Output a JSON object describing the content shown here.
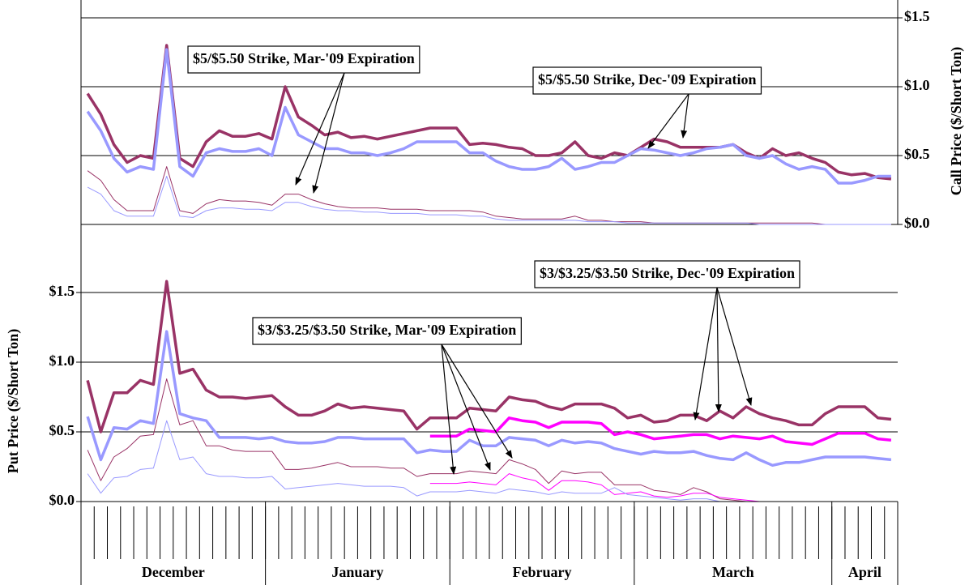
{
  "chart_data": [
    {
      "type": "line",
      "ylabel": "Call Price ($/Short Ton)",
      "ylim": [
        0,
        1.5
      ],
      "grid": true,
      "yticks": [
        {
          "value": 0,
          "label": "$0.0"
        },
        {
          "value": 0.5,
          "label": "$0.5"
        },
        {
          "value": 1,
          "label": "$1.0"
        },
        {
          "value": 1.5,
          "label": "$1.5"
        }
      ],
      "annotations": [
        {
          "text": "$5/$5.50 Strike, Mar-'09 Expiration"
        },
        {
          "text": "$5/$5.50 Strike, Dec-'09 Expiration"
        }
      ],
      "series": [
        {
          "color": "#993366",
          "width": 3.5,
          "values": [
            0.95,
            0.8,
            0.58,
            0.45,
            0.5,
            0.48,
            1.3,
            0.48,
            0.42,
            0.6,
            0.68,
            0.64,
            0.64,
            0.66,
            0.62,
            1.0,
            0.78,
            0.72,
            0.65,
            0.67,
            0.63,
            0.64,
            0.62,
            0.64,
            0.66,
            0.68,
            0.7,
            0.7,
            0.7,
            0.58,
            0.59,
            0.58,
            0.56,
            0.55,
            0.5,
            0.5,
            0.52,
            0.6,
            0.5,
            0.48,
            0.52,
            0.5,
            0.56,
            0.62,
            0.6,
            0.56,
            0.56,
            0.56,
            0.56,
            0.58,
            0.52,
            0.48,
            0.55,
            0.5,
            0.52,
            0.48,
            0.45,
            0.38,
            0.36,
            0.37,
            0.34,
            0.33
          ]
        },
        {
          "color": "#9999ff",
          "width": 3.5,
          "values": [
            0.82,
            0.68,
            0.48,
            0.38,
            0.42,
            0.4,
            1.27,
            0.42,
            0.35,
            0.52,
            0.55,
            0.53,
            0.53,
            0.55,
            0.5,
            0.85,
            0.65,
            0.6,
            0.55,
            0.55,
            0.52,
            0.52,
            0.5,
            0.52,
            0.55,
            0.6,
            0.6,
            0.6,
            0.6,
            0.52,
            0.52,
            0.46,
            0.42,
            0.4,
            0.4,
            0.42,
            0.48,
            0.4,
            0.42,
            0.45,
            0.45,
            0.5,
            0.55,
            0.54,
            0.52,
            0.5,
            0.52,
            0.55,
            0.56,
            0.58,
            0.5,
            0.48,
            0.5,
            0.44,
            0.4,
            0.42,
            0.4,
            0.3,
            0.3,
            0.32,
            0.35,
            0.35
          ]
        },
        {
          "color": "#993366",
          "width": 1,
          "values": [
            0.39,
            0.32,
            0.18,
            0.1,
            0.1,
            0.1,
            0.42,
            0.1,
            0.08,
            0.15,
            0.18,
            0.17,
            0.17,
            0.16,
            0.14,
            0.22,
            0.22,
            0.18,
            0.15,
            0.13,
            0.12,
            0.12,
            0.12,
            0.11,
            0.11,
            0.11,
            0.1,
            0.1,
            0.1,
            0.1,
            0.09,
            0.06,
            0.05,
            0.04,
            0.04,
            0.04,
            0.04,
            0.06,
            0.03,
            0.03,
            0.02,
            0.02,
            0.02,
            0.01,
            0.01,
            0.01,
            0.01,
            0.01,
            0.01,
            0.01,
            0.01,
            0.01,
            0.01,
            0.01,
            0.01,
            0.01,
            0.0,
            0.0,
            0.0,
            0.0,
            0.0,
            0.0
          ]
        },
        {
          "color": "#9999ff",
          "width": 1,
          "values": [
            0.27,
            0.22,
            0.1,
            0.06,
            0.06,
            0.06,
            0.35,
            0.06,
            0.05,
            0.1,
            0.12,
            0.12,
            0.11,
            0.11,
            0.1,
            0.16,
            0.16,
            0.13,
            0.11,
            0.1,
            0.1,
            0.09,
            0.09,
            0.08,
            0.08,
            0.08,
            0.07,
            0.07,
            0.07,
            0.06,
            0.06,
            0.04,
            0.03,
            0.03,
            0.03,
            0.03,
            0.03,
            0.03,
            0.02,
            0.02,
            0.02,
            0.01,
            0.01,
            0.01,
            0.01,
            0.01,
            0.01,
            0.01,
            0.01,
            0.01,
            0.01,
            0.0,
            0.0,
            0.0,
            0.0,
            0.0,
            0.0,
            0.0,
            0.0,
            0.0,
            0.0,
            0.0
          ]
        }
      ]
    },
    {
      "type": "line",
      "ylabel": "Put Price ($/Short Ton)",
      "ylim": [
        0,
        1.5
      ],
      "grid": true,
      "yticks": [
        {
          "value": 0,
          "label": "$0.0"
        },
        {
          "value": 0.5,
          "label": "$0.5"
        },
        {
          "value": 1,
          "label": "$1.0"
        },
        {
          "value": 1.5,
          "label": "$1.5"
        }
      ],
      "annotations": [
        {
          "text": "$3/$3.25/$3.50 Strike, Dec-'09 Expiration"
        },
        {
          "text": "$3/$3.25/$3.50 Strike, Mar-'09 Expiration"
        }
      ],
      "categories": [
        null,
        null,
        null,
        null,
        null,
        null,
        null,
        null,
        null,
        null,
        null,
        null,
        null,
        null,
        null,
        null,
        null,
        null,
        null,
        null,
        null,
        null,
        null,
        null,
        null,
        null,
        null,
        null,
        null,
        null,
        null,
        null,
        null,
        null,
        null,
        null,
        null,
        null,
        null,
        null,
        null,
        null,
        null,
        null,
        null,
        null,
        null,
        null,
        null,
        null,
        null,
        null,
        null,
        null,
        null,
        null,
        null,
        null,
        null,
        null,
        null,
        null
      ],
      "months": [
        {
          "label": "December",
          "count": 14
        },
        {
          "label": "January",
          "count": 14
        },
        {
          "label": "February",
          "count": 14
        },
        {
          "label": "March",
          "count": 15
        },
        {
          "label": "April",
          "count": 5
        }
      ],
      "series": [
        {
          "color": "#993366",
          "width": 3.5,
          "values": [
            0.87,
            0.5,
            0.78,
            0.78,
            0.87,
            0.84,
            1.58,
            0.92,
            0.95,
            0.8,
            0.75,
            0.75,
            0.74,
            0.75,
            0.76,
            0.68,
            0.62,
            0.62,
            0.65,
            0.7,
            0.67,
            0.68,
            0.67,
            0.66,
            0.65,
            0.52,
            0.6,
            0.6,
            0.6,
            0.67,
            0.66,
            0.65,
            0.75,
            0.73,
            0.72,
            0.68,
            0.66,
            0.7,
            0.7,
            0.7,
            0.67,
            0.6,
            0.62,
            0.57,
            0.58,
            0.62,
            0.62,
            0.58,
            0.65,
            0.6,
            0.68,
            0.63,
            0.6,
            0.58,
            0.55,
            0.55,
            0.63,
            0.68,
            0.68,
            0.68,
            0.6,
            0.59
          ]
        },
        {
          "color": "#ff00ff",
          "width": 3.5,
          "values": [
            null,
            null,
            null,
            null,
            null,
            null,
            null,
            null,
            null,
            null,
            null,
            null,
            null,
            null,
            null,
            null,
            null,
            null,
            null,
            null,
            null,
            null,
            null,
            null,
            null,
            null,
            0.47,
            0.47,
            0.47,
            0.52,
            0.51,
            0.5,
            0.6,
            0.58,
            0.57,
            0.53,
            0.57,
            0.57,
            0.57,
            0.56,
            0.48,
            0.5,
            0.48,
            0.45,
            0.46,
            0.47,
            0.48,
            0.48,
            0.45,
            0.47,
            0.46,
            0.45,
            0.47,
            0.43,
            0.42,
            0.41,
            0.45,
            0.49,
            0.49,
            0.49,
            0.45,
            0.44
          ]
        },
        {
          "color": "#9999ff",
          "width": 3.5,
          "values": [
            0.61,
            0.3,
            0.53,
            0.52,
            0.58,
            0.56,
            1.22,
            0.63,
            0.6,
            0.58,
            0.46,
            0.46,
            0.46,
            0.45,
            0.46,
            0.43,
            0.42,
            0.42,
            0.43,
            0.46,
            0.46,
            0.45,
            0.45,
            0.45,
            0.45,
            0.35,
            0.37,
            0.36,
            0.36,
            0.44,
            0.4,
            0.4,
            0.46,
            0.45,
            0.44,
            0.4,
            0.44,
            0.42,
            0.43,
            0.42,
            0.38,
            0.36,
            0.34,
            0.36,
            0.35,
            0.35,
            0.36,
            0.33,
            0.31,
            0.3,
            0.35,
            0.3,
            0.26,
            0.28,
            0.28,
            0.3,
            0.32,
            0.32,
            0.32,
            0.32,
            0.31,
            0.3
          ]
        },
        {
          "color": "#993366",
          "width": 1,
          "values": [
            0.37,
            0.15,
            0.32,
            0.38,
            0.47,
            0.48,
            0.88,
            0.55,
            0.58,
            0.4,
            0.4,
            0.37,
            0.36,
            0.36,
            0.36,
            0.23,
            0.23,
            0.24,
            0.26,
            0.28,
            0.25,
            0.25,
            0.25,
            0.24,
            0.24,
            0.18,
            0.2,
            0.2,
            0.2,
            0.22,
            0.21,
            0.2,
            0.3,
            0.27,
            0.23,
            0.13,
            0.22,
            0.2,
            0.21,
            0.21,
            0.12,
            0.12,
            0.12,
            0.08,
            0.07,
            0.05,
            0.1,
            0.07,
            0.02,
            0.01,
            0.0,
            0.0,
            0.0,
            0.0,
            0.0,
            0.0,
            null,
            null,
            null,
            null,
            null,
            null
          ]
        },
        {
          "color": "#ff00ff",
          "width": 1,
          "values": [
            null,
            null,
            null,
            null,
            null,
            null,
            null,
            null,
            null,
            null,
            null,
            null,
            null,
            null,
            null,
            null,
            null,
            null,
            null,
            null,
            null,
            null,
            null,
            null,
            null,
            null,
            0.13,
            0.13,
            0.13,
            0.14,
            0.13,
            0.12,
            0.2,
            0.17,
            0.15,
            0.08,
            0.15,
            0.15,
            0.14,
            0.12,
            0.05,
            0.06,
            0.07,
            0.04,
            0.03,
            0.04,
            0.06,
            0.06,
            0.03,
            0.02,
            0.01,
            0.0,
            null,
            null,
            null,
            null,
            null,
            null,
            null,
            null,
            null,
            null
          ]
        },
        {
          "color": "#9999ff",
          "width": 1,
          "values": [
            0.2,
            0.06,
            0.17,
            0.18,
            0.23,
            0.24,
            0.58,
            0.3,
            0.32,
            0.2,
            0.18,
            0.18,
            0.17,
            0.17,
            0.18,
            0.09,
            0.1,
            0.11,
            0.12,
            0.13,
            0.12,
            0.11,
            0.11,
            0.11,
            0.1,
            0.04,
            0.07,
            0.07,
            0.07,
            0.08,
            0.07,
            0.06,
            0.09,
            0.08,
            0.07,
            0.05,
            0.07,
            0.06,
            0.06,
            0.06,
            0.1,
            0.05,
            0.04,
            0.03,
            0.02,
            0.01,
            0.02,
            0.02,
            0.0,
            0.0,
            0.0,
            0.0,
            0.0,
            0.0,
            0.0,
            0.0,
            null,
            null,
            null,
            null,
            null,
            null
          ]
        }
      ]
    }
  ]
}
